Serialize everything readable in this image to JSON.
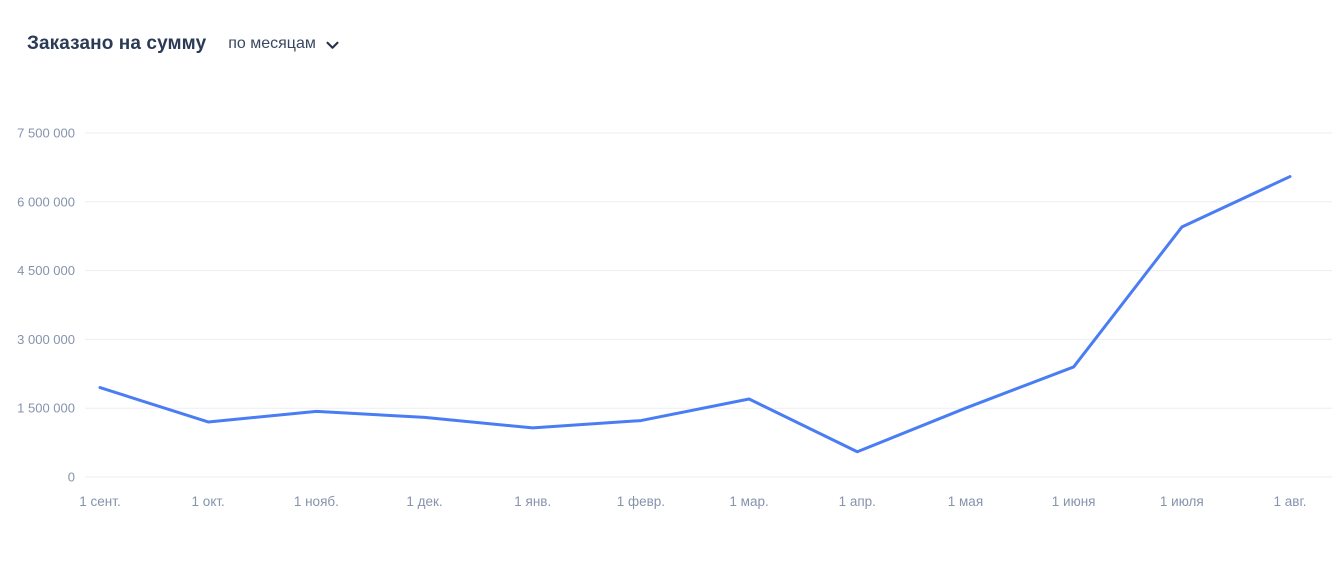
{
  "header": {
    "title": "Заказано на сумму",
    "period_selector": {
      "label": "по месяцам",
      "icon": "chevron-down-icon"
    }
  },
  "chart_data": {
    "type": "line",
    "title": "Заказано на сумму",
    "subtitle": "по месяцам",
    "x": [
      "1 сент.",
      "1 окт.",
      "1 нояб.",
      "1 дек.",
      "1 янв.",
      "1 февр.",
      "1 мар.",
      "1 апр.",
      "1 мая",
      "1 июня",
      "1 июля",
      "1 авг."
    ],
    "series": [
      {
        "name": "Заказано на сумму",
        "values": [
          1950000,
          1200000,
          1430000,
          1300000,
          1070000,
          1230000,
          1700000,
          550000,
          1500000,
          2400000,
          5450000,
          6550000
        ]
      }
    ],
    "xlabel": "",
    "ylabel": "",
    "ylim": [
      0,
      7500000
    ],
    "yticks": [
      0,
      1500000,
      3000000,
      4500000,
      6000000,
      7500000
    ],
    "ytick_labels": [
      "0",
      "1 500 000",
      "3 000 000",
      "4 500 000",
      "6 000 000",
      "7 500 000"
    ],
    "grid": "horizontal",
    "legend": "none",
    "colors": {
      "line": "#4a7df3",
      "grid": "#ededf1",
      "tick_label": "#8593ab",
      "title": "#2b3a55"
    }
  }
}
